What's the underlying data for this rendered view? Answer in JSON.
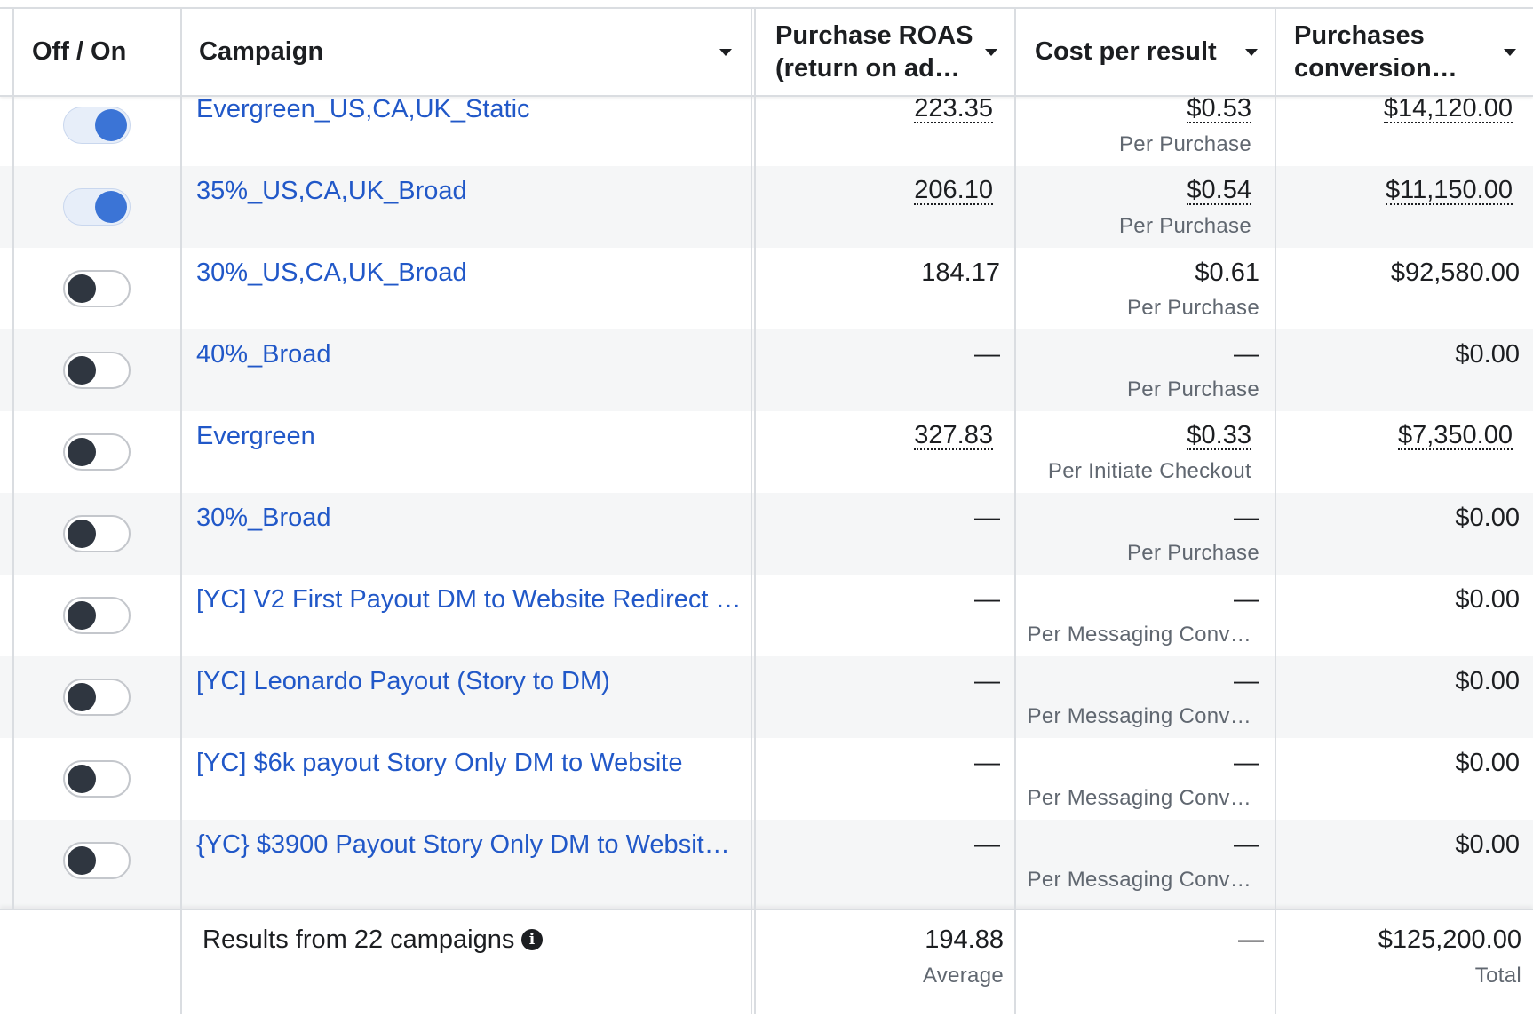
{
  "columns": {
    "toggle": "Off / On",
    "campaign": "Campaign",
    "roas": "Purchase ROAS\n(return on ad…",
    "cost": "Cost per result",
    "purchases": "Purchases\nconversion…"
  },
  "rows": [
    {
      "campaign": "Evergreen_US,CA,UK_Static",
      "on": true,
      "roas": "223.35",
      "cost": "$0.53",
      "cost_sub": "Per Purchase",
      "purchases": "$14,120.00"
    },
    {
      "campaign": "35%_US,CA,UK_Broad",
      "on": true,
      "roas": "206.10",
      "cost": "$0.54",
      "cost_sub": "Per Purchase",
      "purchases": "$11,150.00"
    },
    {
      "campaign": "30%_US,CA,UK_Broad",
      "on": false,
      "roas": "184.17",
      "cost": "$0.61",
      "cost_sub": "Per Purchase",
      "purchases": "$92,580.00"
    },
    {
      "campaign": "40%_Broad",
      "on": false,
      "roas": "—",
      "cost": "—",
      "cost_sub": "Per Purchase",
      "purchases": "$0.00"
    },
    {
      "campaign": "Evergreen",
      "on": false,
      "roas": "327.83",
      "cost": "$0.33",
      "cost_sub": "Per Initiate Checkout",
      "purchases": "$7,350.00"
    },
    {
      "campaign": "30%_Broad",
      "on": false,
      "roas": "—",
      "cost": "—",
      "cost_sub": "Per Purchase",
      "purchases": "$0.00"
    },
    {
      "campaign": "[YC] V2 First Payout DM to Website Redirect …",
      "on": false,
      "roas": "—",
      "cost": "—",
      "cost_sub": "Per Messaging Conv…",
      "purchases": "$0.00"
    },
    {
      "campaign": "[YC] Leonardo Payout (Story to DM)",
      "on": false,
      "roas": "—",
      "cost": "—",
      "cost_sub": "Per Messaging Conv…",
      "purchases": "$0.00"
    },
    {
      "campaign": "[YC] $6k payout Story Only DM to Website",
      "on": false,
      "roas": "—",
      "cost": "—",
      "cost_sub": "Per Messaging Conv…",
      "purchases": "$0.00"
    },
    {
      "campaign": "{YC} $3900 Payout Story Only DM to Websit…",
      "on": false,
      "roas": "—",
      "cost": "—",
      "cost_sub": "Per Messaging Conv…",
      "purchases": "$0.00"
    }
  ],
  "footer": {
    "results": "Results from 22 campaigns",
    "roas": "194.88",
    "roas_sub": "Average",
    "cost": "—",
    "purchases": "$125,200.00",
    "purchases_sub": "Total"
  },
  "icons": {
    "info": "info-icon",
    "sort": "caret-down-icon"
  },
  "colors": {
    "link": "#2158c8",
    "toggle_on": "#3b74d6",
    "toggle_off_knob": "#2f3640",
    "alt_row": "#f5f6f7"
  }
}
